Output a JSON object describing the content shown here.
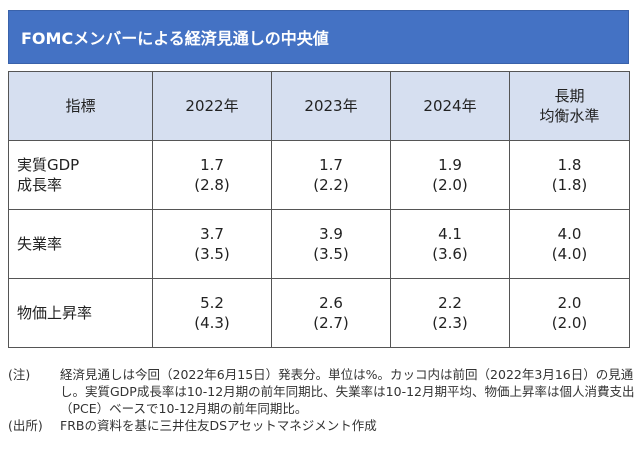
{
  "title": "FOMCメンバーによる経済見通しの中央値",
  "table": {
    "headers": [
      "指標",
      "2022年",
      "2023年",
      "2024年",
      "長期\n均衡水準"
    ],
    "rows": [
      {
        "label": "実質GDP\n成長率",
        "cells": [
          [
            "1.7",
            "(2.8)"
          ],
          [
            "1.7",
            "(2.2)"
          ],
          [
            "1.9",
            "(2.0)"
          ],
          [
            "1.8",
            "(1.8)"
          ]
        ]
      },
      {
        "label": "失業率",
        "cells": [
          [
            "3.7",
            "(3.5)"
          ],
          [
            "3.9",
            "(3.5)"
          ],
          [
            "4.1",
            "(3.6)"
          ],
          [
            "4.0",
            "(4.0)"
          ]
        ]
      },
      {
        "label": "物価上昇率",
        "cells": [
          [
            "5.2",
            "(4.3)"
          ],
          [
            "2.6",
            "(2.7)"
          ],
          [
            "2.2",
            "(2.3)"
          ],
          [
            "2.0",
            "(2.0)"
          ]
        ]
      }
    ]
  },
  "notes": [
    {
      "label": "(注)",
      "text": "経済見通しは今回（2022年6月15日）発表分。単位は%。カッコ内は前回（2022年3月16日）の見通し。実質GDP成長率は10-12月期の前年同期比、失業率は10-12月期平均、物価上昇率は個人消費支出（PCE）ベースで10-12月期の前年同期比。"
    },
    {
      "label": "(出所)",
      "text": "FRBの資料を基に三井住友DSアセットマネジメント作成"
    }
  ]
}
